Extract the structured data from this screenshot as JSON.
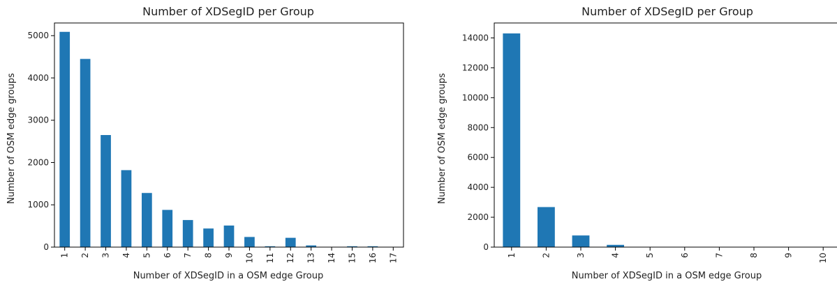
{
  "chart_data": [
    {
      "type": "bar",
      "title": "Number of XDSegID per Group",
      "xlabel": "Number of XDSegID in a OSM edge Group",
      "ylabel": "Number of OSM edge groups",
      "categories": [
        "1",
        "2",
        "3",
        "4",
        "5",
        "6",
        "7",
        "8",
        "9",
        "10",
        "11",
        "12",
        "13",
        "14",
        "15",
        "16",
        "17"
      ],
      "values": [
        5090,
        4450,
        2650,
        1820,
        1280,
        880,
        640,
        440,
        510,
        240,
        20,
        220,
        40,
        5,
        20,
        20,
        5
      ],
      "ylim": [
        0,
        5300
      ],
      "yticks": [
        0,
        1000,
        2000,
        3000,
        4000,
        5000
      ],
      "color": "#1f77b4",
      "grid": false,
      "xtick_rotation": 90
    },
    {
      "type": "bar",
      "title": "Number of XDSegID per Group",
      "xlabel": "Number of XDSegID in a OSM edge Group",
      "ylabel": "Number of OSM edge groups",
      "categories": [
        "1",
        "2",
        "3",
        "4",
        "5",
        "6",
        "7",
        "8",
        "9",
        "10"
      ],
      "values": [
        14300,
        2680,
        780,
        150,
        20,
        10,
        5,
        5,
        2,
        2
      ],
      "ylim": [
        0,
        15000
      ],
      "yticks": [
        0,
        2000,
        4000,
        6000,
        8000,
        10000,
        12000,
        14000
      ],
      "color": "#1f77b4",
      "grid": false,
      "xtick_rotation": 90
    }
  ]
}
